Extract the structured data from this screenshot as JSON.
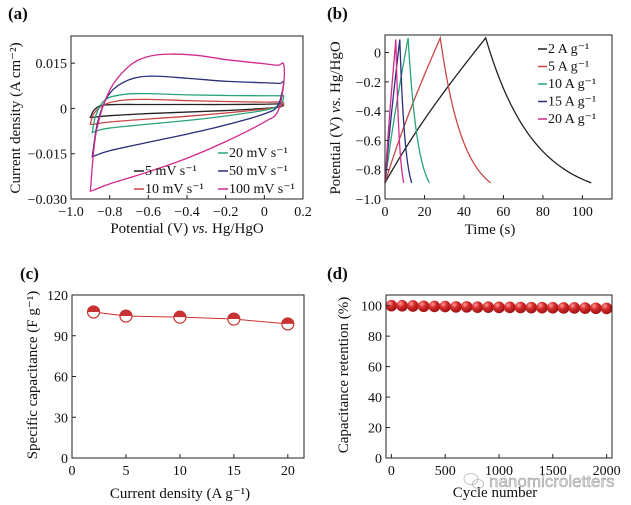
{
  "watermark": "nanomicroletters",
  "chart_data": [
    {
      "panel": "(a)",
      "type": "line",
      "xlabel": "Potential (V) vs. Hg/HgO",
      "ylabel": "Current density (A cm⁻²)",
      "xlim": [
        -1.0,
        0.2
      ],
      "ylim": [
        -0.03,
        0.024
      ],
      "xticks": [
        -1.0,
        -0.8,
        -0.6,
        -0.4,
        -0.2,
        0,
        0.2
      ],
      "xtick_labels": [
        "−1.0",
        "−0.8",
        "−0.6",
        "−0.4",
        "−0.2",
        "0",
        "0.2"
      ],
      "yticks": [
        0.015,
        0,
        -0.015,
        -0.03
      ],
      "ytick_labels": [
        "0.015",
        "0",
        "−0.015",
        "−0.030"
      ],
      "legend_position": "bottom-right",
      "series": [
        {
          "name": "5 mV s⁻¹",
          "color": "#222222",
          "x": [
            -0.9,
            -0.88,
            -0.84,
            -0.75,
            -0.6,
            -0.4,
            -0.2,
            0.0,
            0.08,
            0.1,
            0.08,
            0.0,
            -0.2,
            -0.4,
            -0.6,
            -0.8,
            -0.88,
            -0.9
          ],
          "y": [
            -0.003,
            -0.0005,
            0.001,
            0.0013,
            0.0013,
            0.0013,
            0.0013,
            0.0014,
            0.0015,
            0.0012,
            0.0005,
            0.0,
            -0.0007,
            -0.0012,
            -0.0017,
            -0.0024,
            -0.0029,
            -0.003
          ]
        },
        {
          "name": "10 mV s⁻¹",
          "color": "#c84646",
          "x": [
            -0.9,
            -0.88,
            -0.82,
            -0.72,
            -0.6,
            -0.4,
            -0.2,
            0.0,
            0.08,
            0.1,
            0.08,
            0.0,
            -0.2,
            -0.4,
            -0.6,
            -0.8,
            -0.88,
            -0.9
          ],
          "y": [
            -0.0053,
            -0.0015,
            0.0015,
            0.0028,
            0.003,
            0.0026,
            0.0023,
            0.0021,
            0.0021,
            0.0018,
            0.0006,
            -0.0002,
            -0.0015,
            -0.0026,
            -0.0035,
            -0.0045,
            -0.0052,
            -0.0053
          ]
        },
        {
          "name": "20 mV s⁻¹",
          "color": "#2aa37a",
          "x": [
            -0.89,
            -0.87,
            -0.82,
            -0.72,
            -0.6,
            -0.4,
            -0.2,
            0.0,
            0.08,
            0.1,
            0.08,
            0.0,
            -0.2,
            -0.4,
            -0.6,
            -0.8,
            -0.87,
            -0.89
          ],
          "y": [
            -0.008,
            -0.002,
            0.003,
            0.0047,
            0.0049,
            0.0045,
            0.0043,
            0.0042,
            0.0042,
            0.004,
            0.0012,
            -0.0006,
            -0.0025,
            -0.004,
            -0.0052,
            -0.0065,
            -0.0075,
            -0.008
          ]
        },
        {
          "name": "50 mV s⁻¹",
          "color": "#2b2e7a",
          "x": [
            -0.89,
            -0.86,
            -0.8,
            -0.7,
            -0.58,
            -0.4,
            -0.2,
            0.0,
            0.08,
            0.1,
            0.07,
            0.0,
            -0.2,
            -0.4,
            -0.6,
            -0.8,
            -0.87,
            -0.89
          ],
          "y": [
            -0.016,
            -0.004,
            0.005,
            0.0095,
            0.0107,
            0.01,
            0.009,
            0.0085,
            0.0083,
            0.0085,
            0.001,
            -0.0018,
            -0.0055,
            -0.0085,
            -0.0112,
            -0.014,
            -0.0155,
            -0.016
          ]
        },
        {
          "name": "100 mV s⁻¹",
          "color": "#d02a8c",
          "x": [
            -0.9,
            -0.87,
            -0.8,
            -0.7,
            -0.6,
            -0.49,
            -0.35,
            -0.2,
            0.0,
            0.07,
            0.1,
            0.1,
            0.07,
            0.0,
            -0.2,
            -0.4,
            -0.6,
            -0.8,
            -0.88,
            -0.9
          ],
          "y": [
            -0.0274,
            -0.008,
            0.006,
            0.014,
            0.0172,
            0.018,
            0.0176,
            0.0162,
            0.0148,
            0.0143,
            0.0147,
            0.008,
            -0.001,
            -0.0045,
            -0.011,
            -0.0165,
            -0.021,
            -0.025,
            -0.027,
            -0.0274
          ]
        }
      ]
    },
    {
      "panel": "(b)",
      "type": "line",
      "xlabel": "Time (s)",
      "ylabel": "Potential (V) vs. Hg/HgO",
      "xlim": [
        0,
        115
      ],
      "ylim": [
        -1.0,
        0.12
      ],
      "xticks": [
        0,
        20,
        40,
        60,
        80,
        100
      ],
      "xtick_labels": [
        "0",
        "20",
        "40",
        "60",
        "80",
        "100"
      ],
      "yticks": [
        0,
        -0.2,
        -0.4,
        -0.6,
        -0.8,
        -1.0
      ],
      "ytick_labels": [
        "0",
        "−0.2",
        "−0.4",
        "−0.6",
        "−0.8",
        "−1.0"
      ],
      "legend_position": "top-right",
      "series": [
        {
          "name": "2 A g⁻¹",
          "color": "#222222",
          "charge_end": 51,
          "discharge_end": 104.5,
          "v_min": -0.89,
          "v_max": 0.1
        },
        {
          "name": "5 A g⁻¹",
          "color": "#c84646",
          "charge_end": 28,
          "discharge_end": 53.5,
          "v_min": -0.89,
          "v_max": 0.1
        },
        {
          "name": "10 A g⁻¹",
          "color": "#2aa37a",
          "charge_end": 11.7,
          "discharge_end": 22.5,
          "v_min": -0.89,
          "v_max": 0.1
        },
        {
          "name": "15 A g⁻¹",
          "color": "#2b2e7a",
          "charge_end": 7.5,
          "discharge_end": 13.5,
          "v_min": -0.89,
          "v_max": 0.09
        },
        {
          "name": "20 A g⁻¹",
          "color": "#d02a8c",
          "charge_end": 5.5,
          "discharge_end": 9.5,
          "v_min": -0.89,
          "v_max": 0.09
        }
      ]
    },
    {
      "panel": "(c)",
      "type": "line",
      "xlabel": "Current density (A g⁻¹)",
      "ylabel": "Specific capacitance (F g⁻¹)",
      "xlim": [
        0,
        21.5
      ],
      "ylim": [
        0,
        120
      ],
      "xticks": [
        0,
        5,
        10,
        15,
        20
      ],
      "xtick_labels": [
        "0",
        "5",
        "10",
        "15",
        "20"
      ],
      "yticks": [
        0,
        30,
        60,
        90,
        120
      ],
      "ytick_labels": [
        "0",
        "30",
        "60",
        "90",
        "120"
      ],
      "color": "#c83232",
      "x": [
        2,
        5,
        10,
        15,
        20
      ],
      "values": [
        107.5,
        104.5,
        103.7,
        102.3,
        98.7
      ]
    },
    {
      "panel": "(d)",
      "type": "scatter",
      "xlabel": "Cycle number",
      "ylabel": "Capacitance retention (%)",
      "xlim": [
        -50,
        2050
      ],
      "ylim": [
        0,
        107
      ],
      "xticks": [
        0,
        500,
        1000,
        1500,
        2000
      ],
      "xtick_labels": [
        "0",
        "500",
        "1000",
        "1500",
        "2000"
      ],
      "yticks": [
        0,
        20,
        40,
        60,
        80,
        100
      ],
      "ytick_labels": [
        "0",
        "20",
        "40",
        "60",
        "80",
        "100"
      ],
      "color": "#d42a2a",
      "x": [
        0,
        100,
        200,
        300,
        400,
        500,
        600,
        700,
        800,
        900,
        1000,
        1100,
        1200,
        1300,
        1400,
        1500,
        1600,
        1700,
        1800,
        1900,
        2000
      ],
      "values": [
        100,
        99.9,
        99.8,
        99.6,
        99.5,
        99.4,
        99.2,
        99.2,
        99.0,
        99.0,
        98.9,
        98.9,
        98.8,
        98.7,
        98.7,
        98.6,
        98.5,
        98.5,
        98.4,
        98.3,
        98.2
      ]
    }
  ]
}
